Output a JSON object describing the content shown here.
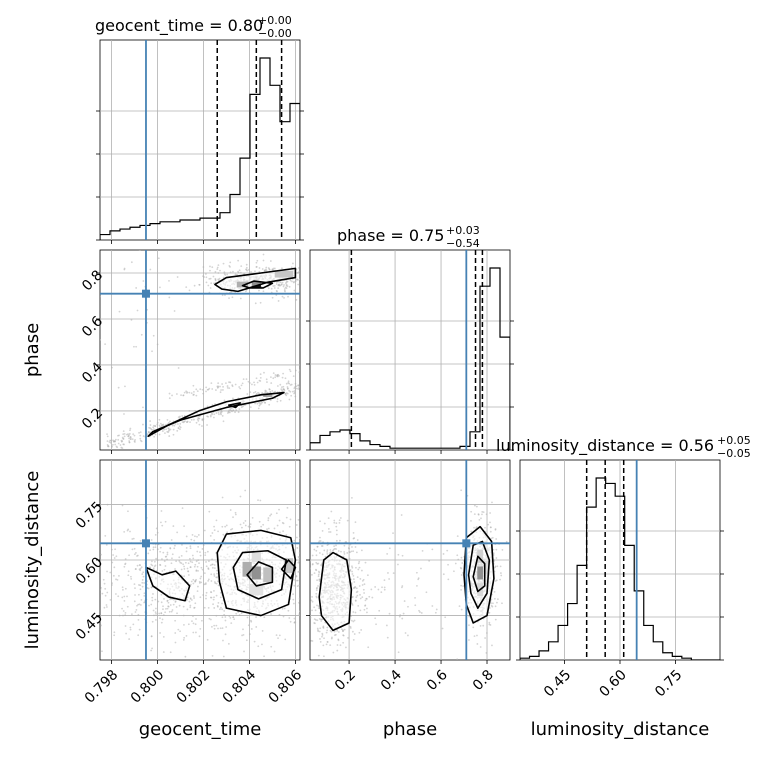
{
  "chart_data": {
    "type": "corner",
    "parameters": [
      "geocent_time",
      "phase",
      "luminosity_distance"
    ],
    "colors": {
      "truth": "#4682b4",
      "hist": "#000000",
      "scatter": "#b0b0b0",
      "density": "#000000"
    },
    "grid": true,
    "ranges": {
      "geocent_time": [
        0.7975,
        0.8062
      ],
      "phase": [
        0.03,
        0.9
      ],
      "luminosity_distance": [
        0.33,
        0.87
      ]
    },
    "ticks": {
      "geocent_time": [
        0.798,
        0.8,
        0.802,
        0.804,
        0.806
      ],
      "phase": [
        0.2,
        0.4,
        0.6,
        0.8
      ],
      "luminosity_distance": [
        0.45,
        0.6,
        0.75
      ]
    },
    "tick_labels": {
      "geocent_time": [
        "0.798",
        "0.800",
        "0.802",
        "0.804",
        "0.806"
      ],
      "phase": [
        "0.2",
        "0.4",
        "0.6",
        "0.8"
      ],
      "luminosity_distance": [
        "0.45",
        "0.60",
        "0.75"
      ]
    },
    "truths": {
      "geocent_time": 0.7995,
      "phase": 0.71,
      "luminosity_distance": 0.645
    },
    "titles": [
      {
        "param": "geocent_time",
        "main": "geocent_time = 0.80",
        "plus": "+0.00",
        "minus": "−0.00"
      },
      {
        "param": "phase",
        "main": "phase = 0.75",
        "plus": "+0.03",
        "minus": "−0.54"
      },
      {
        "param": "luminosity_distance",
        "main": "luminosity_distance = 0.56",
        "plus": "+0.05",
        "minus": "−0.05"
      }
    ],
    "quantiles": {
      "geocent_time": [
        0.8026,
        0.8043,
        0.8054
      ],
      "phase": [
        0.21,
        0.75,
        0.78
      ],
      "luminosity_distance": [
        0.51,
        0.56,
        0.61
      ]
    },
    "histograms": {
      "geocent_time": {
        "bin_start": 0.7975,
        "bin_width": 0.000435,
        "counts": [
          0.03,
          0.05,
          0.06,
          0.07,
          0.08,
          0.09,
          0.1,
          0.1,
          0.11,
          0.11,
          0.12,
          0.12,
          0.15,
          0.25,
          0.45,
          0.8,
          1.0,
          0.85,
          0.65,
          0.75,
          0.1
        ]
      },
      "phase": {
        "bin_start": 0.03,
        "bin_width": 0.0435,
        "counts": [
          0.04,
          0.08,
          0.1,
          0.11,
          0.09,
          0.05,
          0.03,
          0.02,
          0.01,
          0.01,
          0.01,
          0.01,
          0.01,
          0.01,
          0.01,
          0.02,
          0.1,
          0.9,
          1.0,
          0.62,
          0.02
        ]
      },
      "luminosity_distance": {
        "bin_start": 0.33,
        "bin_width": 0.0257,
        "counts": [
          0.01,
          0.02,
          0.05,
          0.1,
          0.19,
          0.31,
          0.52,
          0.84,
          1.0,
          0.97,
          0.9,
          0.63,
          0.38,
          0.19,
          0.1,
          0.04,
          0.02,
          0.01,
          0.0,
          0.0,
          0.0
        ]
      }
    },
    "contours": {
      "phase_vs_geocent_time": [
        {
          "level": "outer",
          "points": [
            [
              0.7996,
              0.09
            ],
            [
              0.8005,
              0.14
            ],
            [
              0.8018,
              0.2
            ],
            [
              0.803,
              0.24
            ],
            [
              0.8045,
              0.27
            ],
            [
              0.8055,
              0.28
            ],
            [
              0.805,
              0.255
            ],
            [
              0.803,
              0.215
            ],
            [
              0.801,
              0.16
            ],
            [
              0.7998,
              0.11
            ]
          ]
        },
        {
          "level": "outer",
          "points": [
            [
              0.8025,
              0.75
            ],
            [
              0.803,
              0.78
            ],
            [
              0.8045,
              0.8
            ],
            [
              0.806,
              0.82
            ],
            [
              0.806,
              0.78
            ],
            [
              0.8048,
              0.76
            ],
            [
              0.8035,
              0.72
            ],
            [
              0.8028,
              0.73
            ]
          ]
        },
        {
          "level": "inner",
          "points": [
            [
              0.8037,
              0.745
            ],
            [
              0.8042,
              0.765
            ],
            [
              0.805,
              0.755
            ],
            [
              0.8046,
              0.735
            ],
            [
              0.804,
              0.735
            ]
          ]
        },
        {
          "level": "inner",
          "points": [
            [
              0.8031,
              0.225
            ],
            [
              0.8036,
              0.235
            ],
            [
              0.8034,
              0.215
            ]
          ]
        }
      ],
      "luminosity_distance_vs_geocent_time": [
        {
          "level": "outer",
          "points": [
            [
              0.7995,
              0.58
            ],
            [
              0.8002,
              0.56
            ],
            [
              0.8008,
              0.57
            ],
            [
              0.8014,
              0.53
            ],
            [
              0.8012,
              0.49
            ],
            [
              0.8005,
              0.5
            ],
            [
              0.7998,
              0.53
            ]
          ]
        },
        {
          "level": "outer",
          "points": [
            [
              0.8026,
              0.62
            ],
            [
              0.803,
              0.67
            ],
            [
              0.8045,
              0.68
            ],
            [
              0.8058,
              0.66
            ],
            [
              0.806,
              0.6
            ],
            [
              0.8057,
              0.48
            ],
            [
              0.8045,
              0.45
            ],
            [
              0.803,
              0.47
            ],
            [
              0.8027,
              0.54
            ]
          ]
        },
        {
          "level": "mid",
          "points": [
            [
              0.8033,
              0.58
            ],
            [
              0.8037,
              0.62
            ],
            [
              0.8048,
              0.625
            ],
            [
              0.8056,
              0.6
            ],
            [
              0.8054,
              0.52
            ],
            [
              0.8044,
              0.495
            ],
            [
              0.8035,
              0.52
            ]
          ]
        },
        {
          "level": "inner",
          "points": [
            [
              0.8039,
              0.56
            ],
            [
              0.8044,
              0.595
            ],
            [
              0.805,
              0.58
            ],
            [
              0.805,
              0.54
            ],
            [
              0.8043,
              0.53
            ]
          ]
        },
        {
          "level": "inner",
          "points": [
            [
              0.8054,
              0.575
            ],
            [
              0.8057,
              0.6
            ],
            [
              0.806,
              0.58
            ],
            [
              0.8058,
              0.55
            ]
          ]
        }
      ],
      "luminosity_distance_vs_phase": [
        {
          "level": "outer",
          "points": [
            [
              0.07,
              0.5
            ],
            [
              0.09,
              0.6
            ],
            [
              0.13,
              0.62
            ],
            [
              0.19,
              0.6
            ],
            [
              0.21,
              0.52
            ],
            [
              0.2,
              0.43
            ],
            [
              0.13,
              0.41
            ],
            [
              0.08,
              0.45
            ]
          ]
        },
        {
          "level": "outer",
          "points": [
            [
              0.7,
              0.56
            ],
            [
              0.71,
              0.66
            ],
            [
              0.77,
              0.69
            ],
            [
              0.82,
              0.65
            ],
            [
              0.83,
              0.55
            ],
            [
              0.8,
              0.45
            ],
            [
              0.74,
              0.43
            ],
            [
              0.71,
              0.48
            ]
          ]
        },
        {
          "level": "mid",
          "points": [
            [
              0.72,
              0.56
            ],
            [
              0.74,
              0.64
            ],
            [
              0.78,
              0.65
            ],
            [
              0.81,
              0.6
            ],
            [
              0.8,
              0.51
            ],
            [
              0.76,
              0.47
            ],
            [
              0.73,
              0.51
            ]
          ]
        },
        {
          "level": "inner",
          "points": [
            [
              0.74,
              0.555
            ],
            [
              0.76,
              0.61
            ],
            [
              0.79,
              0.59
            ],
            [
              0.79,
              0.53
            ],
            [
              0.76,
              0.515
            ]
          ]
        }
      ]
    },
    "density_blocks": {
      "phase_vs_geocent_time": [
        {
          "x": 0.8043,
          "y": 0.75,
          "w": 0.0004,
          "h": 0.03,
          "shade": 0.95
        },
        {
          "x": 0.8037,
          "y": 0.75,
          "w": 0.0005,
          "h": 0.025,
          "shade": 0.7
        },
        {
          "x": 0.8055,
          "y": 0.795,
          "w": 0.0008,
          "h": 0.03,
          "shade": 0.5
        },
        {
          "x": 0.8048,
          "y": 0.268,
          "w": 0.0004,
          "h": 0.015,
          "shade": 0.8
        }
      ],
      "luminosity_distance_vs_geocent_time": [
        {
          "x": 0.8043,
          "y": 0.565,
          "w": 0.0004,
          "h": 0.035,
          "shade": 0.95
        },
        {
          "x": 0.8039,
          "y": 0.575,
          "w": 0.0004,
          "h": 0.04,
          "shade": 0.7
        },
        {
          "x": 0.8048,
          "y": 0.56,
          "w": 0.0004,
          "h": 0.04,
          "shade": 0.55
        },
        {
          "x": 0.8057,
          "y": 0.585,
          "w": 0.0004,
          "h": 0.04,
          "shade": 0.5
        },
        {
          "x": 0.8043,
          "y": 0.61,
          "w": 0.0004,
          "h": 0.03,
          "shade": 0.3
        },
        {
          "x": 0.8043,
          "y": 0.52,
          "w": 0.0006,
          "h": 0.03,
          "shade": 0.25
        }
      ],
      "luminosity_distance_vs_phase": [
        {
          "x": 0.77,
          "y": 0.565,
          "w": 0.025,
          "h": 0.035,
          "shade": 0.95
        },
        {
          "x": 0.77,
          "y": 0.61,
          "w": 0.025,
          "h": 0.035,
          "shade": 0.4
        },
        {
          "x": 0.77,
          "y": 0.52,
          "w": 0.025,
          "h": 0.035,
          "shade": 0.35
        },
        {
          "x": 0.795,
          "y": 0.58,
          "w": 0.02,
          "h": 0.035,
          "shade": 0.3
        }
      ]
    },
    "scatter_clouds": {
      "phase_vs_geocent_time": [
        {
          "kind": "band",
          "x0": 0.7978,
          "y0": 0.05,
          "x1": 0.8062,
          "y1": 0.31,
          "spread": 0.018,
          "n": 420
        },
        {
          "kind": "band",
          "x0": 0.8005,
          "y0": 0.26,
          "x1": 0.8062,
          "y1": 0.37,
          "spread": 0.012,
          "n": 90
        },
        {
          "kind": "blob",
          "cx": 0.8043,
          "cy": 0.77,
          "sx": 0.0012,
          "sy": 0.035,
          "n": 380
        },
        {
          "kind": "blob",
          "cx": 0.799,
          "cy": 0.55,
          "sx": 0.001,
          "sy": 0.2,
          "n": 40
        }
      ],
      "luminosity_distance_vs_geocent_time": [
        {
          "kind": "blob",
          "cx": 0.8043,
          "cy": 0.565,
          "sx": 0.0012,
          "sy": 0.075,
          "n": 700
        },
        {
          "kind": "blob",
          "cx": 0.8005,
          "cy": 0.535,
          "sx": 0.0018,
          "sy": 0.075,
          "n": 550
        }
      ],
      "luminosity_distance_vs_phase": [
        {
          "kind": "blob",
          "cx": 0.14,
          "cy": 0.52,
          "sx": 0.06,
          "sy": 0.075,
          "n": 650
        },
        {
          "kind": "blob",
          "cx": 0.77,
          "cy": 0.565,
          "sx": 0.035,
          "sy": 0.07,
          "n": 550
        },
        {
          "kind": "blob",
          "cx": 0.45,
          "cy": 0.53,
          "sx": 0.15,
          "sy": 0.08,
          "n": 80
        }
      ]
    }
  }
}
